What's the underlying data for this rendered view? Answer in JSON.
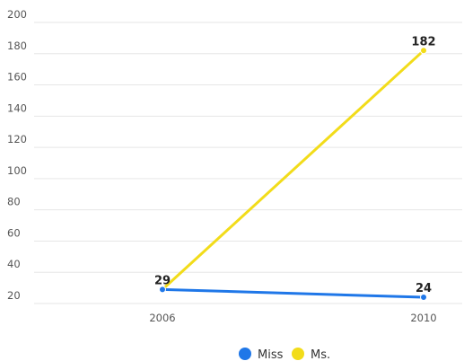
{
  "chart_data": {
    "type": "line",
    "title": "",
    "xlabel": "",
    "ylabel": "",
    "x": [
      "2006",
      "2010"
    ],
    "ylim": [
      20,
      200
    ],
    "yticks": [
      20,
      40,
      60,
      80,
      100,
      120,
      140,
      160,
      180,
      200
    ],
    "grid": true,
    "legend_position": "bottom-center",
    "series": [
      {
        "name": "Miss",
        "values": [
          29,
          24
        ],
        "color": "#1f77e8",
        "data_labels": [
          "29",
          "24"
        ]
      },
      {
        "name": "Ms.",
        "values": [
          29,
          182
        ],
        "color": "#f2dc1a",
        "data_labels": [
          "",
          "182"
        ]
      }
    ]
  }
}
